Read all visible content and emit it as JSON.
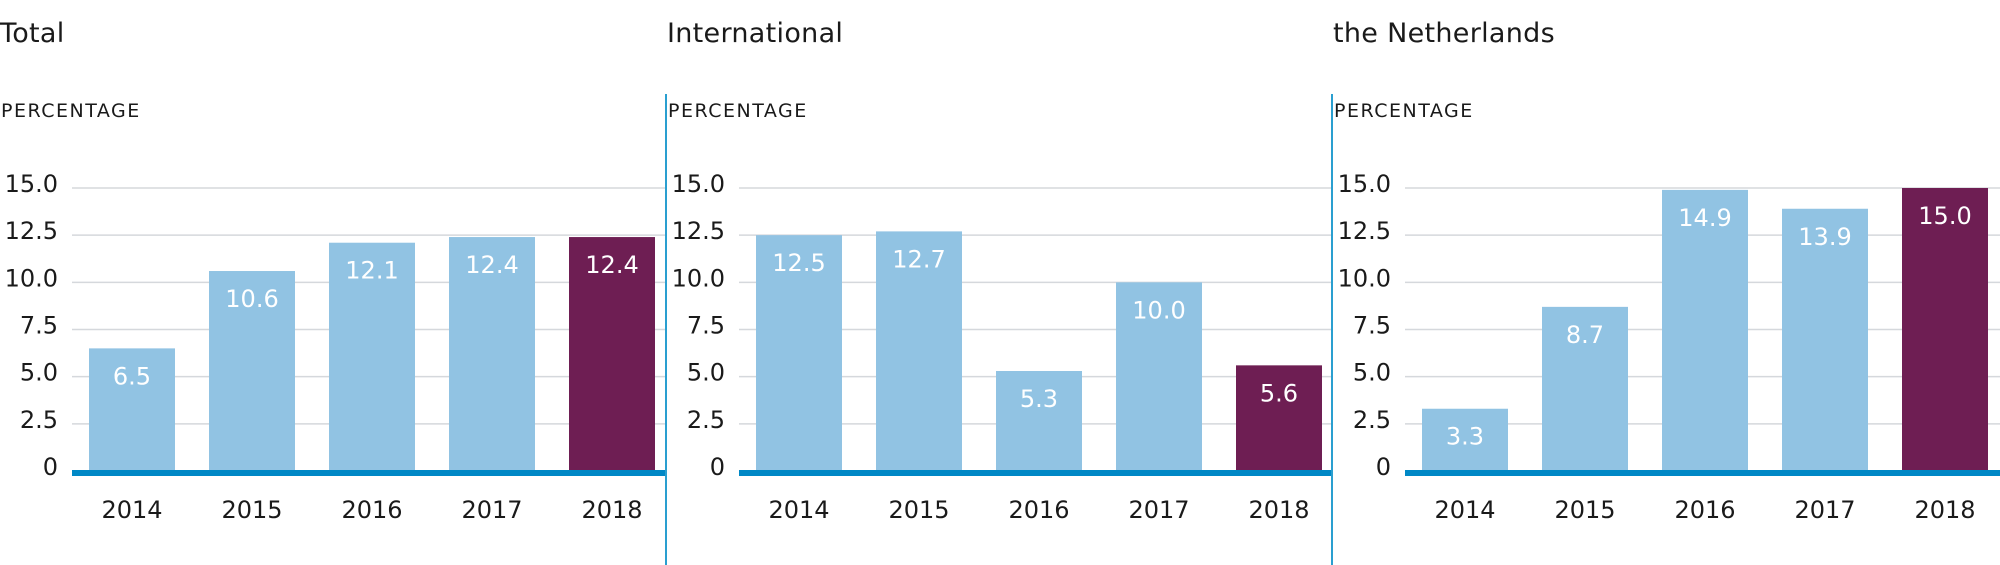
{
  "colors": {
    "bar_default": "#91c3e3",
    "bar_highlight": "#6e1e53",
    "axis": "#0088c6",
    "grid": "#d5d8dc",
    "divider": "#2a9fd0"
  },
  "chart_data": [
    {
      "type": "bar",
      "title": "Total",
      "ylabel": "PERCENTAGE",
      "xlabel": "",
      "categories": [
        "2014",
        "2015",
        "2016",
        "2017",
        "2018"
      ],
      "values": [
        6.5,
        10.6,
        12.1,
        12.4,
        12.4
      ],
      "value_labels": [
        "6.5",
        "10.6",
        "12.1",
        "12.4",
        "12.4"
      ],
      "highlight_index": 4,
      "ylim": [
        0,
        15
      ],
      "yticks": [
        0,
        2.5,
        5,
        7.5,
        10,
        12.5,
        15
      ],
      "ytick_labels": [
        "0",
        "2.5",
        "5.0",
        "7.5",
        "10.0",
        "12.5",
        "15.0"
      ],
      "grid": true,
      "legend": "none"
    },
    {
      "type": "bar",
      "title": "International",
      "ylabel": "PERCENTAGE",
      "xlabel": "",
      "categories": [
        "2014",
        "2015",
        "2016",
        "2017",
        "2018"
      ],
      "values": [
        12.5,
        12.7,
        5.3,
        10.0,
        5.6
      ],
      "value_labels": [
        "12.5",
        "12.7",
        "5.3",
        "10.0",
        "5.6"
      ],
      "highlight_index": 4,
      "ylim": [
        0,
        15
      ],
      "yticks": [
        0,
        2.5,
        5,
        7.5,
        10,
        12.5,
        15
      ],
      "ytick_labels": [
        "0",
        "2.5",
        "5.0",
        "7.5",
        "10.0",
        "12.5",
        "15.0"
      ],
      "grid": true,
      "legend": "none"
    },
    {
      "type": "bar",
      "title": "the Netherlands",
      "ylabel": "PERCENTAGE",
      "xlabel": "",
      "categories": [
        "2014",
        "2015",
        "2016",
        "2017",
        "2018"
      ],
      "values": [
        3.3,
        8.7,
        14.9,
        13.9,
        15.0
      ],
      "value_labels": [
        "3.3",
        "8.7",
        "14.9",
        "13.9",
        "15.0"
      ],
      "highlight_index": 4,
      "ylim": [
        0,
        15
      ],
      "yticks": [
        0,
        2.5,
        5,
        7.5,
        10,
        12.5,
        15
      ],
      "ytick_labels": [
        "0",
        "2.5",
        "5.0",
        "7.5",
        "10.0",
        "12.5",
        "15.0"
      ],
      "grid": true,
      "legend": "none"
    }
  ]
}
